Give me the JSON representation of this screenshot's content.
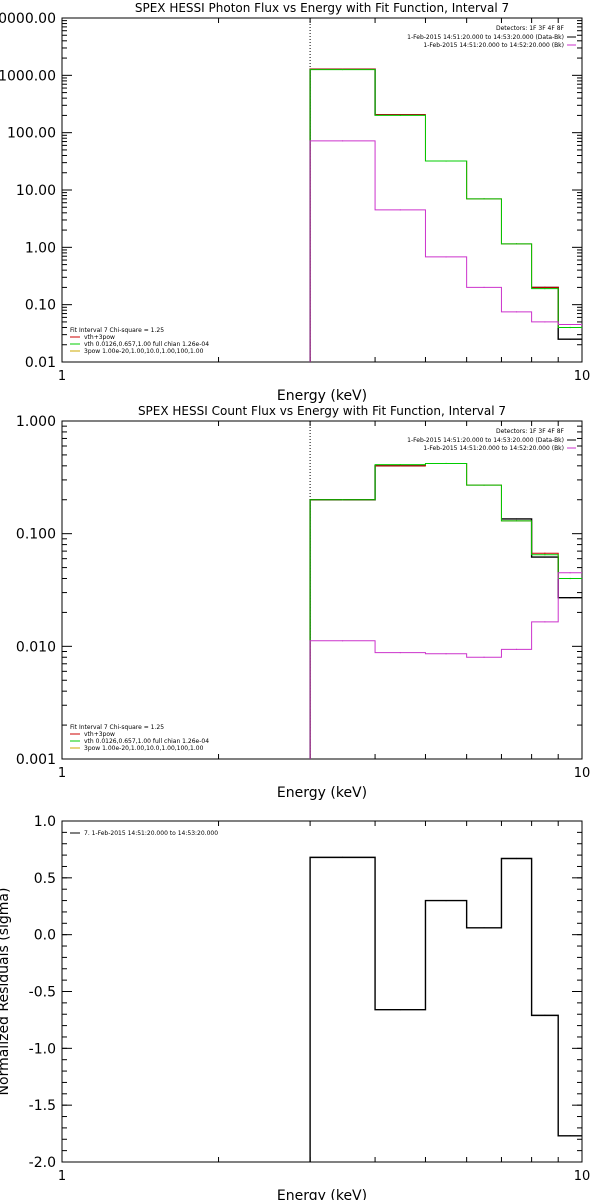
{
  "chart_data": [
    {
      "type": "line",
      "title": "SPEX HESSI Photon Flux vs Energy with Fit Function, Interval 7",
      "xlabel": "Energy (keV)",
      "ylabel": "",
      "xscale": "log",
      "yscale": "log",
      "xlim": [
        1,
        10
      ],
      "ylim": [
        0.01,
        10000
      ],
      "x_ticks": [
        "1",
        "10"
      ],
      "y_ticks": [
        "0.01",
        "0.10",
        "1.00",
        "10.00",
        "100.00",
        "1000.00",
        "10000.00"
      ],
      "y_tick_values": [
        0.01,
        0.1,
        1,
        10,
        100,
        1000,
        10000
      ],
      "marker_x": 3,
      "legend_right": {
        "title": "Detectors: 1F 3F 4F 8F",
        "entries": [
          {
            "text": "1-Feb-2015 14:51:20.000 to 14:53:20.000 (Data-Bk)",
            "color": "#000000"
          },
          {
            "text": "1-Feb-2015 14:51:20.000 to 14:52:20.000 (Bk)",
            "color": "#cc33cc"
          }
        ]
      },
      "legend_left": {
        "title": "Fit Interval 7   Chi-square = 1.25",
        "entries": [
          {
            "text": "vth+3pow",
            "color": "#cc0000"
          },
          {
            "text": "vth 0.0126,0.657,1.00  full chian 1.26e-04",
            "color": "#00cc00"
          },
          {
            "text": "3pow 1.00e-20,1.00,10.0,1.00,100,1.00",
            "color": "#ccaa00"
          }
        ]
      },
      "bin_edges": [
        3,
        4,
        5,
        6,
        7,
        8,
        9,
        10
      ],
      "series": [
        {
          "name": "Data-Bk",
          "color": "#000000",
          "values": [
            1280,
            205,
            null,
            null,
            null,
            0.2,
            0.025
          ]
        },
        {
          "name": "vth+3pow",
          "color": "#cc0000",
          "values": [
            1280,
            205,
            32,
            7,
            1.15,
            0.2,
            0.04
          ]
        },
        {
          "name": "vth",
          "color": "#00cc00",
          "values": [
            1260,
            200,
            32,
            7,
            1.15,
            0.19,
            0.04
          ]
        },
        {
          "name": "Bk",
          "color": "#cc33cc",
          "values": [
            72,
            4.5,
            0.68,
            0.2,
            0.075,
            0.05,
            0.045
          ]
        }
      ]
    },
    {
      "type": "line",
      "title": "SPEX HESSI Count Flux vs Energy with Fit Function, Interval 7",
      "xlabel": "Energy (keV)",
      "ylabel": "",
      "xscale": "log",
      "yscale": "log",
      "xlim": [
        1,
        10
      ],
      "ylim": [
        0.001,
        1
      ],
      "x_ticks": [
        "1",
        "10"
      ],
      "y_ticks": [
        "0.001",
        "0.010",
        "0.100",
        "1.000"
      ],
      "y_tick_values": [
        0.001,
        0.01,
        0.1,
        1
      ],
      "marker_x": 3,
      "legend_right": {
        "title": "Detectors: 1F 3F 4F 8F",
        "entries": [
          {
            "text": "1-Feb-2015 14:51:20.000 to 14:53:20.000 (Data-Bk)",
            "color": "#000000"
          },
          {
            "text": "1-Feb-2015 14:51:20.000 to 14:52:20.000 (Bk)",
            "color": "#cc33cc"
          }
        ]
      },
      "legend_left": {
        "title": "Fit Interval 7   Chi-square = 1.25",
        "entries": [
          {
            "text": "vth+3pow",
            "color": "#cc0000"
          },
          {
            "text": "vth 0.0126,0.657,1.00  full chian 1.26e-04",
            "color": "#00cc00"
          },
          {
            "text": "3pow 1.00e-20,1.00,10.0,1.00,100,1.00",
            "color": "#ccaa00"
          }
        ]
      },
      "bin_edges": [
        3,
        4,
        5,
        6,
        7,
        8,
        9,
        10
      ],
      "series": [
        {
          "name": "Data-Bk",
          "color": "#000000",
          "values": [
            0.2,
            0.4,
            null,
            null,
            0.135,
            0.062,
            0.027
          ]
        },
        {
          "name": "vth+3pow",
          "color": "#cc0000",
          "values": [
            0.2,
            0.4,
            0.42,
            0.27,
            0.13,
            0.067,
            0.04
          ]
        },
        {
          "name": "vth",
          "color": "#00cc00",
          "values": [
            0.2,
            0.41,
            0.42,
            0.27,
            0.13,
            0.065,
            0.04
          ]
        },
        {
          "name": "Bk",
          "color": "#cc33cc",
          "values": [
            0.0112,
            0.0088,
            0.0086,
            0.008,
            0.0094,
            0.0165,
            0.045
          ]
        }
      ]
    },
    {
      "type": "line",
      "title": "",
      "xlabel": "Energy (keV)",
      "ylabel": "Normalized Residuals (sigma)",
      "xscale": "log",
      "yscale": "linear",
      "xlim": [
        1,
        10
      ],
      "ylim": [
        -2.0,
        1.0
      ],
      "x_ticks": [
        "1",
        "10"
      ],
      "y_ticks": [
        "-2.0",
        "-1.5",
        "-1.0",
        "-0.5",
        "0.0",
        "0.5",
        "1.0"
      ],
      "y_tick_values": [
        -2.0,
        -1.5,
        -1.0,
        -0.5,
        0.0,
        0.5,
        1.0
      ],
      "legend_left": {
        "title": "",
        "entries": [
          {
            "text": "7.  1-Feb-2015 14:51:20.000 to 14:53:20.000",
            "color": "#000000"
          }
        ]
      },
      "bin_edges": [
        3,
        4,
        5,
        6,
        7,
        8,
        9,
        10
      ],
      "series": [
        {
          "name": "7.  1-Feb-2015 14:51:20.000 to 14:53:20.000",
          "color": "#000000",
          "values": [
            0.68,
            -0.66,
            0.3,
            0.06,
            0.67,
            -0.71,
            -1.77
          ]
        }
      ]
    }
  ]
}
